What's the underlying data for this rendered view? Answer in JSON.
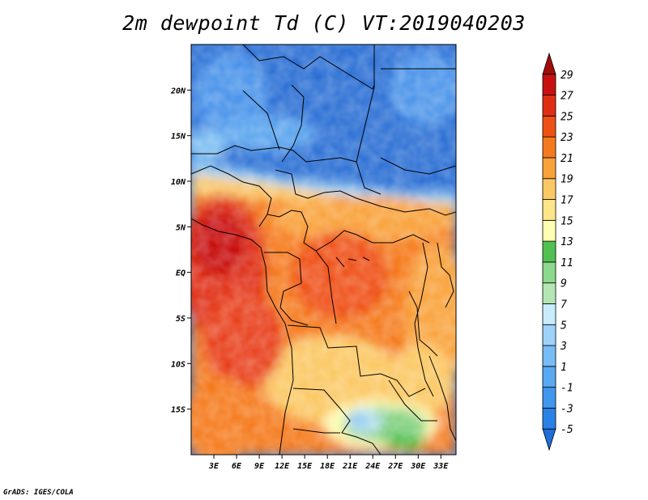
{
  "title": "2m dewpoint Td (C) VT:2019040203",
  "credit": "GrADS: IGES/COLA",
  "colors": {
    "background": "#ffffff",
    "border": "#000000"
  },
  "map": {
    "lon_range": [
      0,
      35
    ],
    "lat_range": [
      -20,
      25
    ],
    "lat_ticks": [
      {
        "value": 20,
        "label": "20N"
      },
      {
        "value": 15,
        "label": "15N"
      },
      {
        "value": 10,
        "label": "10N"
      },
      {
        "value": 5,
        "label": "5N"
      },
      {
        "value": 0,
        "label": "EQ"
      },
      {
        "value": -5,
        "label": "5S"
      },
      {
        "value": -10,
        "label": "10S"
      },
      {
        "value": -15,
        "label": "15S"
      }
    ],
    "lon_ticks": [
      {
        "value": 3,
        "label": "3E"
      },
      {
        "value": 6,
        "label": "6E"
      },
      {
        "value": 9,
        "label": "9E"
      },
      {
        "value": 12,
        "label": "12E"
      },
      {
        "value": 15,
        "label": "15E"
      },
      {
        "value": 18,
        "label": "18E"
      },
      {
        "value": 21,
        "label": "21E"
      },
      {
        "value": 24,
        "label": "24E"
      },
      {
        "value": 27,
        "label": "27E"
      },
      {
        "value": 30,
        "label": "30E"
      },
      {
        "value": 33,
        "label": "33E"
      }
    ]
  },
  "colorbar": {
    "levels": [
      "-5",
      "-3",
      "-1",
      "1",
      "3",
      "5",
      "7",
      "9",
      "11",
      "13",
      "15",
      "17",
      "19",
      "21",
      "23",
      "25",
      "27",
      "29"
    ],
    "colors": [
      "#1e6ed8",
      "#2a82e6",
      "#4196ee",
      "#5aa8f2",
      "#78bcf6",
      "#9ed2fa",
      "#c8ecfc",
      "#b4e6b4",
      "#8cd88c",
      "#50c050",
      "#ffffb4",
      "#fde68a",
      "#fbc864",
      "#f9a23a",
      "#f57a1e",
      "#ef5014",
      "#e02e14",
      "#c81010",
      "#a00c0c"
    ]
  }
}
